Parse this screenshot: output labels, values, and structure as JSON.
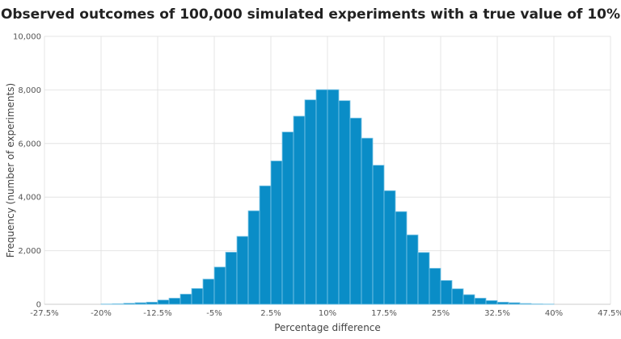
{
  "chart_data": {
    "type": "bar",
    "title": "Observed outcomes of 100,000 simulated experiments with a true value of 10%",
    "xlabel": "Percentage difference",
    "ylabel": "Frequency (number of experiments)",
    "xlim": [
      -27.5,
      47.5
    ],
    "ylim": [
      0,
      10000
    ],
    "x_ticks": [
      -27.5,
      -20,
      -12.5,
      -5,
      2.5,
      10,
      17.5,
      25,
      32.5,
      40,
      47.5
    ],
    "x_tick_labels": [
      "-27.5%",
      "-20%",
      "-12.5%",
      "-5%",
      "2.5%",
      "10%",
      "17.5%",
      "25%",
      "32.5%",
      "40%",
      "47.5%"
    ],
    "y_ticks": [
      0,
      2000,
      4000,
      6000,
      8000,
      10000
    ],
    "y_tick_labels": [
      "0",
      "2,000",
      "4,000",
      "6,000",
      "8,000",
      "10,000"
    ],
    "grid": true,
    "bin_width": 1.5,
    "bin_starts": [
      -20,
      -18.5,
      -17,
      -15.5,
      -14,
      -12.5,
      -11,
      -9.5,
      -8,
      -6.5,
      -5,
      -3.5,
      -2,
      -0.5,
      1,
      2.5,
      4,
      5.5,
      7,
      8.5,
      10,
      11.5,
      13,
      14.5,
      16,
      17.5,
      19,
      20.5,
      22,
      23.5,
      25,
      26.5,
      28,
      29.5,
      31,
      32.5,
      34,
      35.5,
      37,
      38.5
    ],
    "values": [
      10,
      20,
      40,
      60,
      80,
      160,
      230,
      380,
      590,
      940,
      1390,
      1945,
      2535,
      3490,
      4420,
      5350,
      6430,
      7020,
      7630,
      8010,
      8010,
      7600,
      6950,
      6200,
      5190,
      4240,
      3460,
      2590,
      1935,
      1345,
      890,
      580,
      360,
      230,
      140,
      80,
      60,
      30,
      15,
      8
    ],
    "bar_color": "#0a8dc7"
  }
}
